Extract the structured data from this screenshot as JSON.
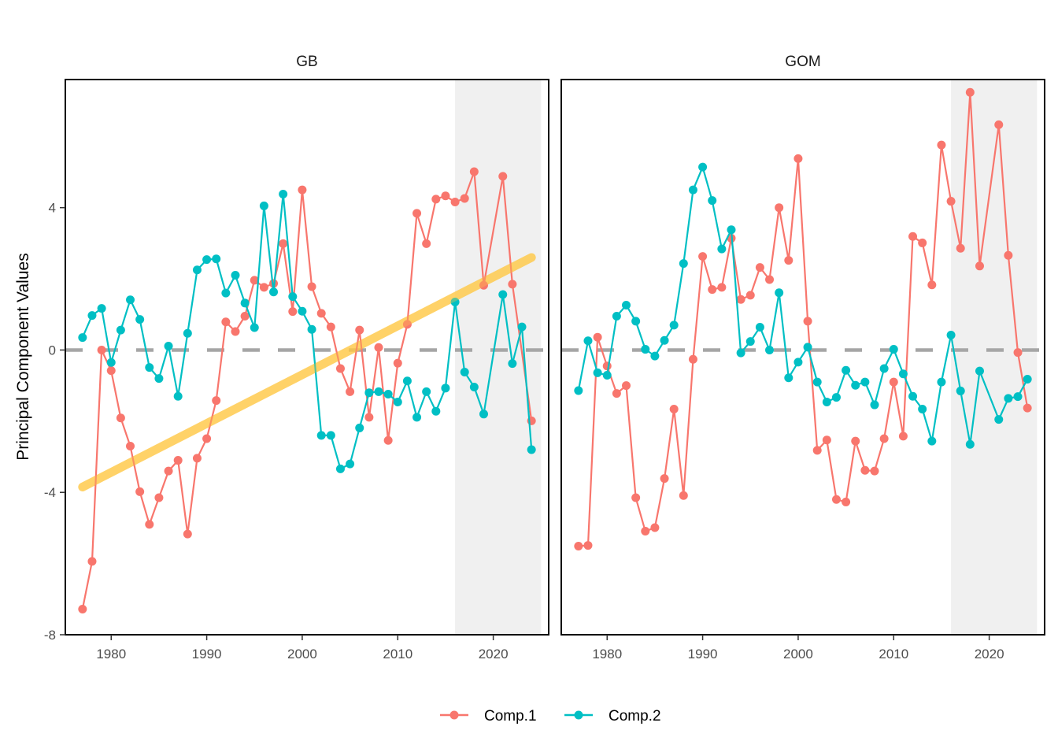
{
  "chart_data": {
    "type": "line",
    "ylabel": "Principal Component Values",
    "xlabel": "",
    "ylim": [
      -8,
      7.6
    ],
    "xlim": [
      1975.2,
      2025.8
    ],
    "yticks": [
      -8,
      -4,
      0,
      4
    ],
    "ytick_labels": [
      "-8",
      "-4",
      "0",
      "4"
    ],
    "xticks": [
      1980,
      1990,
      2000,
      2010,
      2020
    ],
    "xtick_labels": [
      "1980",
      "1990",
      "2000",
      "2010",
      "2020"
    ],
    "reference_line": {
      "y": 0,
      "style": "dashed",
      "color": "#A6A6A6"
    },
    "highlight_region": {
      "x": [
        2016,
        2025
      ],
      "color": "#F0F0F0"
    },
    "legend": {
      "position": "bottom",
      "entries": [
        {
          "name": "Comp.1",
          "color": "#F8766D"
        },
        {
          "name": "Comp.2",
          "color": "#00BFC4"
        }
      ]
    },
    "panels": [
      {
        "name": "GB",
        "trend_line": {
          "x": [
            1977,
            2024
          ],
          "y": [
            -3.85,
            2.6
          ],
          "color": "#FFC845"
        },
        "series": [
          {
            "name": "Comp.1",
            "color": "#F8766D",
            "x": [
              1977,
              1978,
              1979,
              1980,
              1981,
              1982,
              1983,
              1984,
              1985,
              1986,
              1987,
              1988,
              1989,
              1990,
              1991,
              1992,
              1993,
              1994,
              1995,
              1996,
              1997,
              1998,
              1999,
              2000,
              2001,
              2002,
              2003,
              2004,
              2005,
              2006,
              2007,
              2008,
              2009,
              2010,
              2011,
              2012,
              2013,
              2014,
              2015,
              2016,
              2017,
              2018,
              2019,
              2021,
              2022,
              2024
            ],
            "y": [
              -7.28,
              -5.94,
              0.0,
              -0.58,
              -1.91,
              -2.7,
              -3.98,
              -4.9,
              -4.15,
              -3.4,
              -3.1,
              -5.17,
              -3.04,
              -2.49,
              -1.42,
              0.79,
              0.52,
              0.95,
              1.96,
              1.76,
              1.87,
              2.99,
              1.08,
              4.5,
              1.78,
              1.03,
              0.65,
              -0.52,
              -1.17,
              0.56,
              -1.89,
              0.07,
              -2.54,
              -0.37,
              0.72,
              3.84,
              2.99,
              4.24,
              4.33,
              4.16,
              4.26,
              5.01,
              1.82,
              4.88,
              1.85,
              -1.99
            ]
          },
          {
            "name": "Comp.2",
            "color": "#00BFC4",
            "x": [
              1977,
              1978,
              1979,
              1980,
              1981,
              1982,
              1983,
              1984,
              1985,
              1986,
              1987,
              1988,
              1989,
              1990,
              1991,
              1992,
              1993,
              1994,
              1995,
              1996,
              1997,
              1998,
              1999,
              2000,
              2001,
              2002,
              2003,
              2004,
              2005,
              2006,
              2007,
              2008,
              2009,
              2010,
              2011,
              2012,
              2013,
              2014,
              2015,
              2016,
              2017,
              2018,
              2019,
              2021,
              2022,
              2023,
              2024
            ],
            "y": [
              0.35,
              0.97,
              1.17,
              -0.35,
              0.56,
              1.41,
              0.86,
              -0.49,
              -0.8,
              0.11,
              -1.3,
              0.47,
              2.25,
              2.54,
              2.56,
              1.6,
              2.1,
              1.32,
              0.63,
              4.05,
              1.63,
              4.38,
              1.5,
              1.09,
              0.58,
              -2.4,
              -2.4,
              -3.34,
              -3.2,
              -2.19,
              -1.2,
              -1.17,
              -1.24,
              -1.46,
              -0.87,
              -1.89,
              -1.17,
              -1.72,
              -1.07,
              1.35,
              -0.62,
              -1.04,
              -1.8,
              1.56,
              -0.38,
              0.65,
              -2.8
            ]
          }
        ]
      },
      {
        "name": "GOM",
        "series": [
          {
            "name": "Comp.1",
            "color": "#F8766D",
            "x": [
              1977,
              1978,
              1979,
              1980,
              1981,
              1982,
              1983,
              1984,
              1985,
              1986,
              1987,
              1988,
              1989,
              1990,
              1991,
              1992,
              1993,
              1994,
              1995,
              1996,
              1997,
              1998,
              1999,
              2000,
              2001,
              2002,
              2003,
              2004,
              2005,
              2006,
              2007,
              2008,
              2009,
              2010,
              2011,
              2012,
              2013,
              2014,
              2015,
              2016,
              2017,
              2018,
              2019,
              2021,
              2022,
              2023,
              2024
            ],
            "y": [
              -5.51,
              -5.49,
              0.36,
              -0.45,
              -1.22,
              -1.0,
              -4.15,
              -5.09,
              -4.99,
              -3.61,
              -1.66,
              -4.09,
              -0.26,
              2.63,
              1.7,
              1.76,
              3.14,
              1.42,
              1.54,
              2.32,
              1.98,
              4.0,
              2.52,
              5.38,
              0.81,
              -2.82,
              -2.53,
              -4.2,
              -4.27,
              -2.56,
              -3.38,
              -3.4,
              -2.49,
              -0.9,
              -2.42,
              3.19,
              3.01,
              1.83,
              5.76,
              4.18,
              2.86,
              7.24,
              2.36,
              6.33,
              2.66,
              -0.07,
              -1.63
            ]
          },
          {
            "name": "Comp.2",
            "color": "#00BFC4",
            "x": [
              1977,
              1978,
              1979,
              1980,
              1981,
              1982,
              1983,
              1984,
              1985,
              1986,
              1987,
              1988,
              1989,
              1990,
              1991,
              1992,
              1993,
              1994,
              1995,
              1996,
              1997,
              1998,
              1999,
              2000,
              2001,
              2002,
              2003,
              2004,
              2005,
              2006,
              2007,
              2008,
              2009,
              2010,
              2011,
              2012,
              2013,
              2014,
              2015,
              2016,
              2017,
              2018,
              2019,
              2021,
              2022,
              2023,
              2024
            ],
            "y": [
              -1.14,
              0.26,
              -0.64,
              -0.71,
              0.95,
              1.26,
              0.81,
              0.02,
              -0.17,
              0.27,
              0.7,
              2.43,
              4.5,
              5.14,
              4.2,
              2.84,
              3.38,
              -0.08,
              0.24,
              0.64,
              0.0,
              1.61,
              -0.78,
              -0.34,
              0.08,
              -0.9,
              -1.46,
              -1.33,
              -0.57,
              -0.99,
              -0.9,
              -1.54,
              -0.52,
              0.02,
              -0.67,
              -1.3,
              -1.66,
              -2.56,
              -0.9,
              0.42,
              -1.15,
              -2.65,
              -0.59,
              -1.95,
              -1.36,
              -1.31,
              -0.82
            ]
          }
        ]
      }
    ]
  }
}
